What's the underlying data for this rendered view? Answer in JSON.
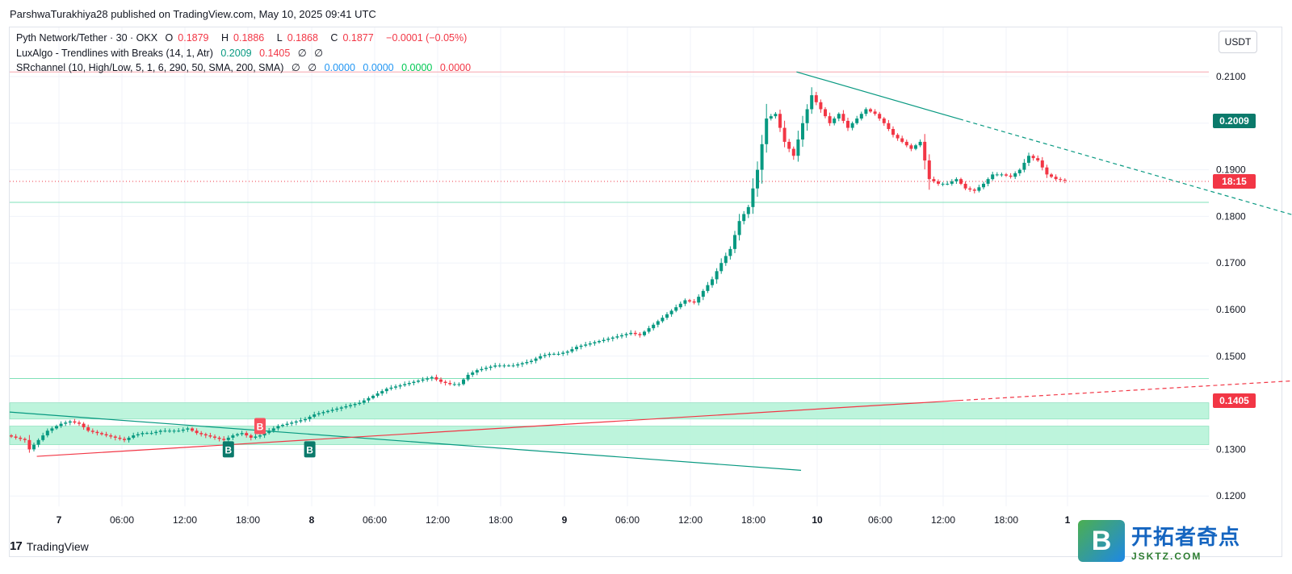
{
  "header": {
    "publisher_line": "ParshwaTurakhiya28 published on TradingView.com, May 10, 2025 09:41 UTC"
  },
  "legend": {
    "symbol": {
      "title": "Pyth Network/Tether · 30 · OKX",
      "o_label": "O",
      "o": "0.1879",
      "h_label": "H",
      "h": "0.1886",
      "l_label": "L",
      "l": "0.1868",
      "c_label": "C",
      "c": "0.1877",
      "change": "−0.0001 (−0.05%)"
    },
    "indicator1": {
      "name": "LuxAlgo - Trendlines with Breaks (14, 1, Atr)",
      "v1": "0.2009",
      "v2": "0.1405",
      "v3": "∅",
      "v4": "∅"
    },
    "indicator2": {
      "name": "SRchannel (10, High/Low, 5, 1, 6, 290, 50, SMA, 200, SMA)",
      "v1": "∅",
      "v2": "∅",
      "v3": "0.0000",
      "v4": "0.0000",
      "v5": "0.0000",
      "v6": "0.0000"
    }
  },
  "currency_button": "USDT",
  "price_tags": {
    "upper_trend": "0.2009",
    "countdown": "18:15",
    "lower_trend": "0.1405"
  },
  "footer": {
    "brand": "TradingView",
    "logo_mark": "17"
  },
  "watermark": {
    "icon_letter": "B",
    "cn": "开拓者奇点",
    "en": "JSKTZ.COM"
  },
  "colors": {
    "up": "#089981",
    "down": "#f23645",
    "sr_zone": "#b2f2d6",
    "trend_down": "#089981",
    "trend_up": "#f23645",
    "accent": "#2962ff"
  },
  "chart_data": {
    "type": "candlestick",
    "symbol": "Pyth Network/Tether",
    "interval": "30",
    "exchange": "OKX",
    "y_ticks": [
      "0.2100",
      "0.1900",
      "0.1800",
      "0.1700",
      "0.1600",
      "0.1500",
      "0.1300",
      "0.1200"
    ],
    "x_ticks": [
      "7",
      "06:00",
      "12:00",
      "18:00",
      "8",
      "06:00",
      "12:00",
      "18:00",
      "9",
      "06:00",
      "12:00",
      "18:00",
      "10",
      "06:00",
      "12:00",
      "18:00",
      "1"
    ],
    "ylim": [
      0.117,
      0.22
    ],
    "close_path": [
      [
        0,
        0.133
      ],
      [
        2,
        0.1325
      ],
      [
        4,
        0.132
      ],
      [
        5,
        0.13
      ],
      [
        7,
        0.132
      ],
      [
        9,
        0.134
      ],
      [
        12,
        0.1355
      ],
      [
        14,
        0.136
      ],
      [
        16,
        0.1355
      ],
      [
        18,
        0.134
      ],
      [
        20,
        0.1335
      ],
      [
        22,
        0.133
      ],
      [
        24,
        0.1325
      ],
      [
        26,
        0.132
      ],
      [
        28,
        0.133
      ],
      [
        30,
        0.1335
      ],
      [
        32,
        0.1335
      ],
      [
        34,
        0.134
      ],
      [
        36,
        0.134
      ],
      [
        38,
        0.134
      ],
      [
        40,
        0.1345
      ],
      [
        42,
        0.1335
      ],
      [
        44,
        0.133
      ],
      [
        46,
        0.1325
      ],
      [
        48,
        0.132
      ],
      [
        50,
        0.133
      ],
      [
        52,
        0.1335
      ],
      [
        54,
        0.1325
      ],
      [
        56,
        0.133
      ],
      [
        58,
        0.134
      ],
      [
        60,
        0.135
      ],
      [
        62,
        0.1355
      ],
      [
        64,
        0.136
      ],
      [
        66,
        0.1365
      ],
      [
        68,
        0.1375
      ],
      [
        70,
        0.138
      ],
      [
        72,
        0.1385
      ],
      [
        74,
        0.139
      ],
      [
        76,
        0.1395
      ],
      [
        78,
        0.14
      ],
      [
        80,
        0.141
      ],
      [
        82,
        0.142
      ],
      [
        84,
        0.143
      ],
      [
        86,
        0.1435
      ],
      [
        88,
        0.144
      ],
      [
        90,
        0.1445
      ],
      [
        92,
        0.145
      ],
      [
        94,
        0.1455
      ],
      [
        96,
        0.1445
      ],
      [
        98,
        0.144
      ],
      [
        100,
        0.144
      ],
      [
        102,
        0.146
      ],
      [
        104,
        0.147
      ],
      [
        106,
        0.1475
      ],
      [
        108,
        0.148
      ],
      [
        110,
        0.148
      ],
      [
        112,
        0.148
      ],
      [
        114,
        0.1485
      ],
      [
        116,
        0.149
      ],
      [
        118,
        0.15
      ],
      [
        120,
        0.1505
      ],
      [
        122,
        0.1505
      ],
      [
        124,
        0.151
      ],
      [
        126,
        0.152
      ],
      [
        128,
        0.1525
      ],
      [
        130,
        0.153
      ],
      [
        132,
        0.1535
      ],
      [
        134,
        0.154
      ],
      [
        136,
        0.1545
      ],
      [
        138,
        0.155
      ],
      [
        140,
        0.1545
      ],
      [
        142,
        0.156
      ],
      [
        144,
        0.1575
      ],
      [
        146,
        0.159
      ],
      [
        148,
        0.1605
      ],
      [
        150,
        0.162
      ],
      [
        152,
        0.1615
      ],
      [
        154,
        0.164
      ],
      [
        156,
        0.1665
      ],
      [
        158,
        0.17
      ],
      [
        160,
        0.173
      ],
      [
        162,
        0.179
      ],
      [
        164,
        0.182
      ],
      [
        166,
        0.19
      ],
      [
        168,
        0.201
      ],
      [
        170,
        0.202
      ],
      [
        172,
        0.196
      ],
      [
        174,
        0.193
      ],
      [
        176,
        0.2
      ],
      [
        178,
        0.206
      ],
      [
        180,
        0.203
      ],
      [
        182,
        0.2
      ],
      [
        184,
        0.202
      ],
      [
        186,
        0.199
      ],
      [
        188,
        0.201
      ],
      [
        190,
        0.203
      ],
      [
        192,
        0.202
      ],
      [
        194,
        0.2
      ],
      [
        196,
        0.1975
      ],
      [
        198,
        0.196
      ],
      [
        200,
        0.1945
      ],
      [
        202,
        0.196
      ],
      [
        204,
        0.188
      ],
      [
        206,
        0.187
      ],
      [
        208,
        0.187
      ],
      [
        210,
        0.188
      ],
      [
        212,
        0.186
      ],
      [
        214,
        0.1855
      ],
      [
        216,
        0.187
      ],
      [
        218,
        0.189
      ],
      [
        220,
        0.189
      ],
      [
        222,
        0.1885
      ],
      [
        224,
        0.19
      ],
      [
        226,
        0.193
      ],
      [
        228,
        0.192
      ],
      [
        230,
        0.189
      ],
      [
        232,
        0.188
      ],
      [
        234,
        0.1877
      ]
    ],
    "horizontal_levels": [
      0.211,
      0.1875,
      0.183,
      0.1452
    ],
    "sr_zones": [
      [
        0.1365,
        0.14
      ],
      [
        0.131,
        0.135
      ]
    ],
    "trendlines": [
      {
        "name": "upper-trend-solid",
        "from": [
          174,
          0.211
        ],
        "to": [
          210,
          0.2009
        ]
      },
      {
        "name": "upper-trend-dashed",
        "from": [
          210,
          0.2009
        ],
        "to": [
          310,
          0.173
        ]
      },
      {
        "name": "lower-trend-solid",
        "from": [
          0,
          0.138
        ],
        "to": [
          175,
          0.1255
        ]
      },
      {
        "name": "support-solid",
        "from": [
          6,
          0.1285
        ],
        "to": [
          210,
          0.1405
        ]
      },
      {
        "name": "support-dashed",
        "from": [
          210,
          0.1405
        ],
        "to": [
          310,
          0.1462
        ]
      }
    ],
    "signals": [
      {
        "label": "B",
        "type": "break-down",
        "x": 55,
        "y": 0.135
      },
      {
        "label": "B",
        "type": "break-up",
        "x": 48,
        "y": 0.13
      },
      {
        "label": "B",
        "type": "break-up",
        "x": 66,
        "y": 0.13
      }
    ]
  }
}
